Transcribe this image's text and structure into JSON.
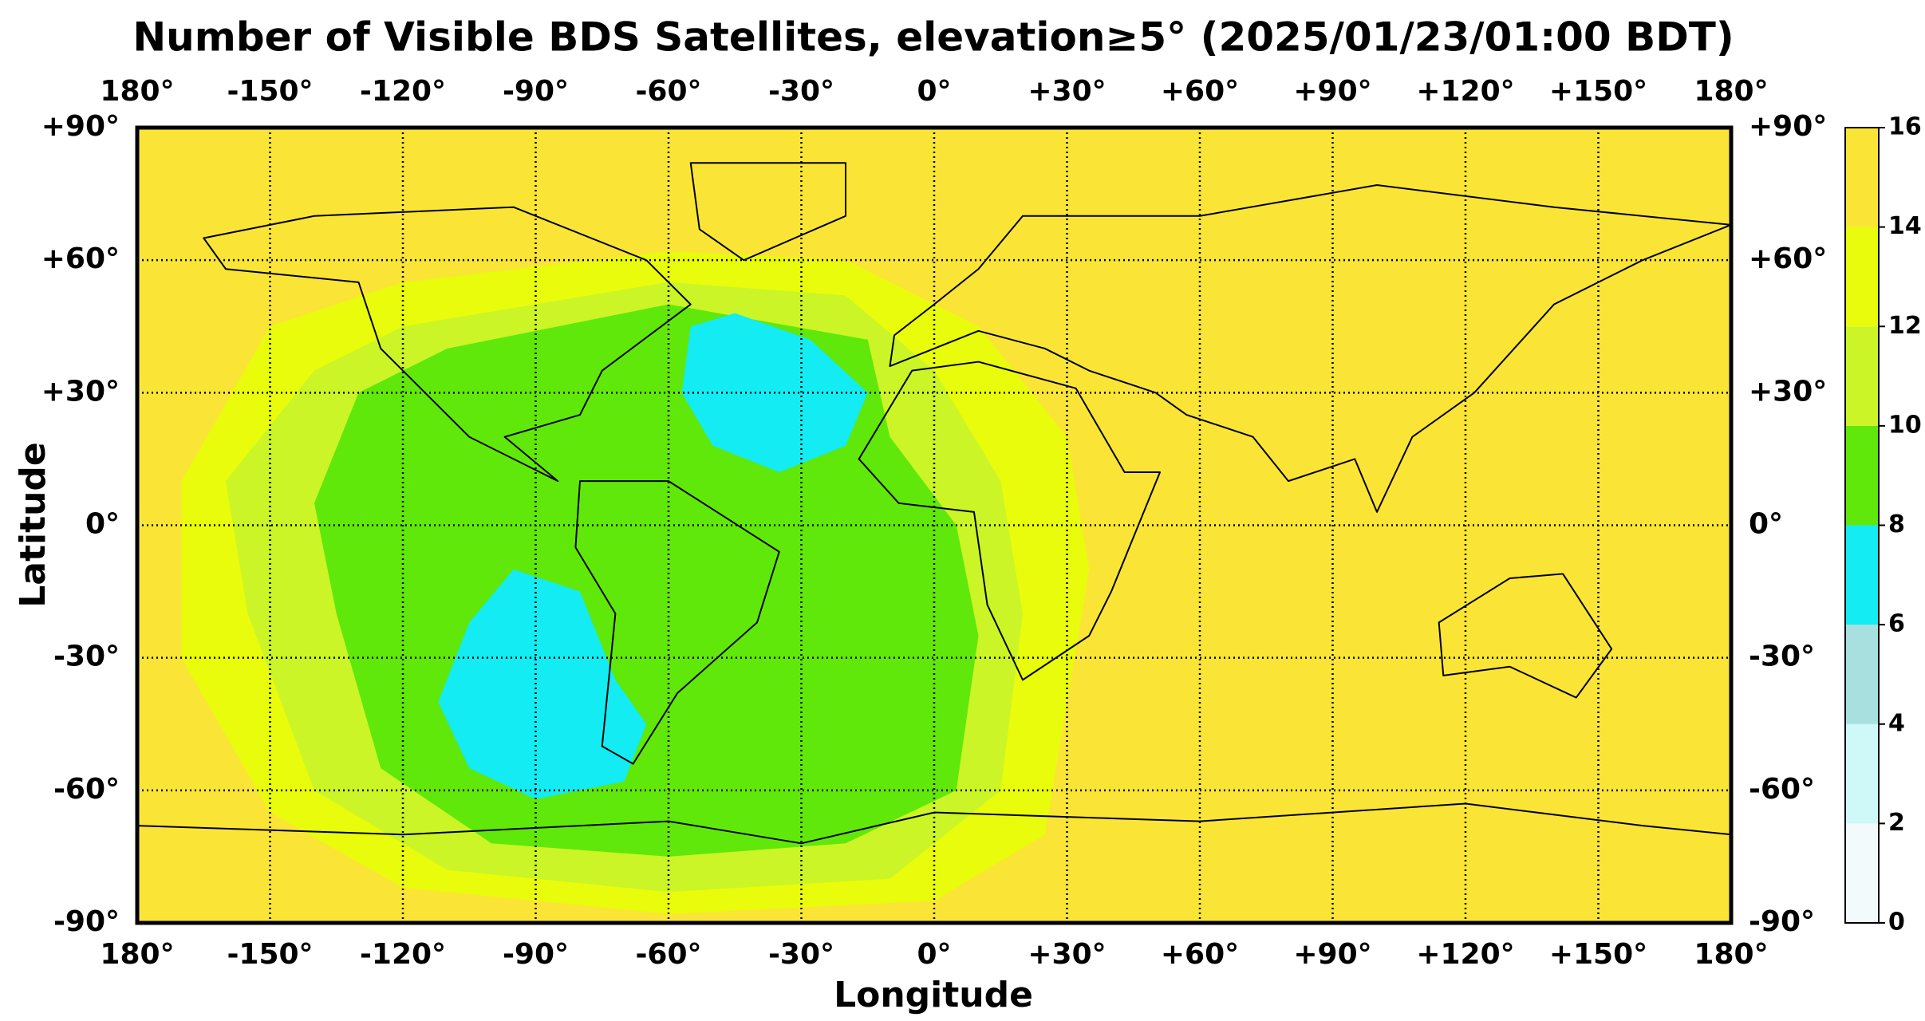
{
  "chart_data": {
    "type": "region-map",
    "title": "Number of Visible BDS Satellites, elevation≥5° (2025/01/23/01:00 BDT)",
    "xlabel": "Longitude",
    "ylabel": "Latitude",
    "xlim": [
      -180,
      180
    ],
    "ylim": [
      -90,
      90
    ],
    "xticks": [
      {
        "value": -180,
        "label": "180°"
      },
      {
        "value": -150,
        "label": "-150°"
      },
      {
        "value": -120,
        "label": "-120°"
      },
      {
        "value": -90,
        "label": "-90°"
      },
      {
        "value": -60,
        "label": "-60°"
      },
      {
        "value": -30,
        "label": "-30°"
      },
      {
        "value": 0,
        "label": "0°"
      },
      {
        "value": 30,
        "label": "+30°"
      },
      {
        "value": 60,
        "label": "+60°"
      },
      {
        "value": 90,
        "label": "+90°"
      },
      {
        "value": 120,
        "label": "+120°"
      },
      {
        "value": 150,
        "label": "+150°"
      },
      {
        "value": 180,
        "label": "180°"
      }
    ],
    "yticks": [
      {
        "value": -90,
        "label": "-90°"
      },
      {
        "value": -60,
        "label": "-60°"
      },
      {
        "value": -30,
        "label": "-30°"
      },
      {
        "value": 0,
        "label": "0°"
      },
      {
        "value": 30,
        "label": "+30°"
      },
      {
        "value": 60,
        "label": "+60°"
      },
      {
        "value": 90,
        "label": "+90°"
      }
    ],
    "grid": true,
    "background_value": 15,
    "regions": [
      {
        "value": 13,
        "lon": [
          -150,
          -120,
          -60,
          -20,
          10,
          30,
          35,
          30,
          25,
          0,
          -60,
          -120,
          -150,
          -170,
          -170
        ],
        "lat": [
          45,
          55,
          62,
          60,
          45,
          20,
          -10,
          -40,
          -70,
          -85,
          -88,
          -82,
          -65,
          -30,
          10
        ]
      },
      {
        "value": 11,
        "lon": [
          -140,
          -120,
          -60,
          -20,
          0,
          15,
          20,
          15,
          -10,
          -60,
          -110,
          -140,
          -155,
          -160
        ],
        "lat": [
          35,
          45,
          55,
          52,
          35,
          10,
          -20,
          -60,
          -80,
          -83,
          -78,
          -60,
          -20,
          10
        ]
      },
      {
        "value": 9,
        "lon": [
          -130,
          -110,
          -60,
          -15,
          -10,
          5,
          10,
          5,
          -20,
          -60,
          -100,
          -125,
          -135,
          -140
        ],
        "lat": [
          30,
          40,
          50,
          42,
          20,
          0,
          -25,
          -60,
          -72,
          -75,
          -72,
          -55,
          -20,
          5
        ]
      },
      {
        "value": 7,
        "lon": [
          -55,
          -45,
          -28,
          -15,
          -20,
          -35,
          -50,
          -57
        ],
        "lat": [
          45,
          48,
          42,
          30,
          18,
          12,
          18,
          30
        ]
      },
      {
        "value": 7,
        "lon": [
          -95,
          -80,
          -72,
          -65,
          -70,
          -90,
          -105,
          -112,
          -105
        ],
        "lat": [
          -10,
          -15,
          -35,
          -45,
          -58,
          -62,
          -55,
          -40,
          -22
        ]
      }
    ],
    "colorbar": {
      "levels": [
        0,
        2,
        4,
        6,
        8,
        10,
        12,
        14,
        16
      ],
      "colors": [
        "#f3fafc",
        "#cff8f8",
        "#a8e0e0",
        "#12ecf2",
        "#60e80a",
        "#cbf526",
        "#e8fc0c",
        "#fae536"
      ]
    }
  }
}
